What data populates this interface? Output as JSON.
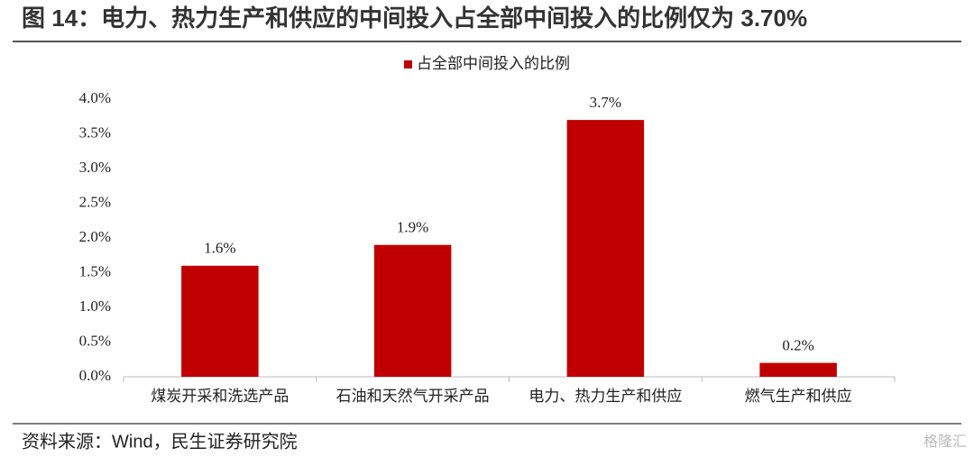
{
  "header": {
    "title": "图 14：电力、热力生产和供应的中间投入占全部中间投入的比例仅为 3.70%"
  },
  "chart_data": {
    "type": "bar",
    "categories": [
      "煤炭开采和洗选产品",
      "石油和天然气开采产品",
      "电力、热力生产和供应",
      "燃气生产和供应"
    ],
    "series": [
      {
        "name": "占全部中间投入的比例",
        "color": "#c00000",
        "values": [
          1.6,
          1.9,
          3.7,
          0.2
        ],
        "value_labels": [
          "1.6%",
          "1.9%",
          "3.7%",
          "0.2%"
        ]
      }
    ],
    "ylim": [
      0,
      4
    ],
    "yticks": [
      {
        "value": 0,
        "label": "0.0%"
      },
      {
        "value": 0.5,
        "label": "0.5%"
      },
      {
        "value": 1,
        "label": "1.0%"
      },
      {
        "value": 1.5,
        "label": "1.5%"
      },
      {
        "value": 2,
        "label": "2.0%"
      },
      {
        "value": 2.5,
        "label": "2.5%"
      },
      {
        "value": 3,
        "label": "3.0%"
      },
      {
        "value": 3.5,
        "label": "3.5%"
      },
      {
        "value": 4,
        "label": "4.0%"
      }
    ],
    "legend": "top"
  },
  "footer": {
    "source": "资料来源：Wind，民生证券研究院",
    "watermark": "格隆汇"
  }
}
